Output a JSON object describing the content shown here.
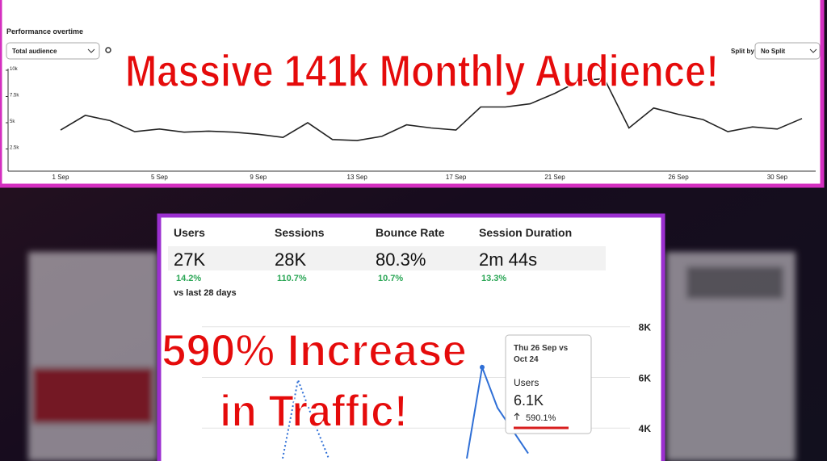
{
  "chart_data": [
    {
      "type": "line",
      "title": "Performance overtime",
      "categories": [
        "1 Sep",
        null,
        null,
        null,
        "5 Sep",
        null,
        null,
        null,
        "9 Sep",
        null,
        null,
        null,
        "13 Sep",
        null,
        null,
        null,
        "17 Sep",
        null,
        null,
        null,
        "21 Sep",
        null,
        null,
        null,
        null,
        "26 Sep",
        null,
        null,
        null,
        "30 Sep",
        null
      ],
      "series": [
        {
          "color": "#222222",
          "values": [
            4300,
            5700,
            5200,
            4150,
            4400,
            4100,
            4200,
            4100,
            3900,
            3600,
            5000,
            3400,
            3300,
            3700,
            4800,
            4500,
            4300,
            6500,
            6500,
            6800,
            7800,
            9000,
            9200,
            4500,
            6400,
            5800,
            5300,
            4150,
            4600,
            4400,
            5400
          ]
        }
      ],
      "ylim": [
        0,
        10000
      ],
      "yticks": [
        {
          "value": 2500,
          "label": "2.5k"
        },
        {
          "value": 5000,
          "label": "5k"
        },
        {
          "value": 7500,
          "label": "7.5k"
        },
        {
          "value": 10000,
          "label": "10k"
        }
      ],
      "grid": false
    },
    {
      "type": "line",
      "categories": [
        null,
        null,
        null,
        null,
        null,
        null,
        null,
        null,
        null,
        null,
        null,
        null,
        null,
        null,
        null,
        null,
        null,
        null,
        null,
        null,
        null,
        null,
        null,
        null
      ],
      "series": [
        {
          "color": "#2f6fd6",
          "dashed": true,
          "values": [
            null,
            null,
            null,
            null,
            null,
            null,
            null,
            2800,
            5900,
            4300,
            2800,
            null,
            null,
            null,
            null,
            null,
            null,
            null,
            null,
            null,
            null,
            null,
            null,
            null
          ]
        },
        {
          "color": "#2f6fd6",
          "dashed": false,
          "values": [
            null,
            null,
            null,
            null,
            null,
            null,
            null,
            null,
            null,
            null,
            null,
            null,
            null,
            null,
            null,
            null,
            null,
            null,
            null,
            2800,
            6400,
            4800,
            3900,
            3000
          ]
        }
      ],
      "ylim": [
        2700,
        8500
      ],
      "yticks": [
        {
          "value": 4000,
          "label": "4K"
        },
        {
          "value": 6000,
          "label": "6K"
        },
        {
          "value": 8000,
          "label": "8K"
        }
      ],
      "grid": true
    }
  ],
  "controls": {
    "audience": "Total audience",
    "split_label": "Split by",
    "split": "No Split"
  },
  "stats": [
    {
      "label": "Users",
      "value": "27K",
      "change": "14.2%"
    },
    {
      "label": "Sessions",
      "value": "28K",
      "change": "110.7%"
    },
    {
      "label": "Bounce Rate",
      "value": "80.3%",
      "change": "10.7%"
    },
    {
      "label": "Session Duration",
      "value": "2m 44s",
      "change": "13.3%"
    }
  ],
  "comparison": "vs last 28 days",
  "tooltip": {
    "title_1": "Thu 26 Sep vs",
    "title_2": "Oct 24",
    "metric": "Users",
    "value": "6.1K",
    "change": "590.1%"
  },
  "annotations": {
    "headline": "Massive 141k Monthly Audience!",
    "subline_1": "590% Increase",
    "subline_2": "in Traffic!"
  }
}
